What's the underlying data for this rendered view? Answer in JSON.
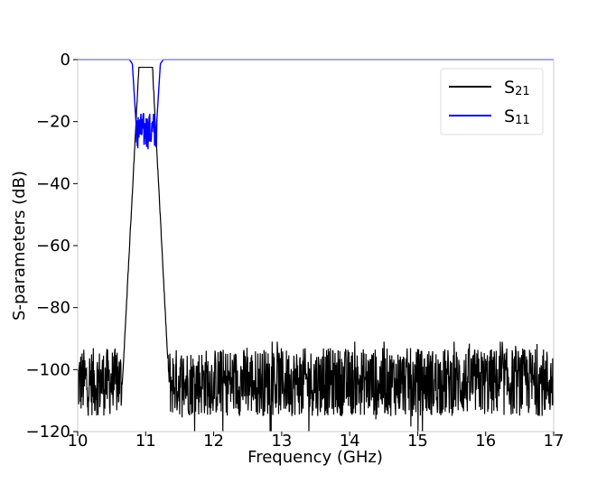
{
  "chart_data": {
    "type": "line",
    "title": "",
    "xlabel": "Frequency (GHz)",
    "ylabel": "S-parameters (dB)",
    "xlim": [
      10,
      17
    ],
    "ylim": [
      -120,
      0
    ],
    "xticks": [
      10,
      11,
      12,
      13,
      14,
      15,
      16,
      17
    ],
    "yticks": [
      0,
      -20,
      -40,
      -60,
      -80,
      -100,
      -120
    ],
    "xtick_labels": [
      "10",
      "11",
      "12",
      "13",
      "14",
      "15",
      "16",
      "17"
    ],
    "ytick_labels": [
      "0",
      "−20",
      "−40",
      "−60",
      "−80",
      "−100",
      "−120"
    ],
    "grid": false,
    "legend_position": "top-right",
    "series": [
      {
        "name": "S21",
        "legend_main": "S",
        "legend_sub": "21",
        "color": "#000000",
        "passband": [
          10.9,
          11.1
        ],
        "passband_level": -2.5,
        "noise_floor_mean": -104,
        "noise_floor_range": [
          -120,
          -91
        ]
      },
      {
        "name": "S11",
        "legend_main": "S",
        "legend_sub": "11",
        "color": "#0000ff",
        "stopband_level": 0,
        "passband_ripple_range": [
          -29,
          -17
        ]
      }
    ]
  }
}
